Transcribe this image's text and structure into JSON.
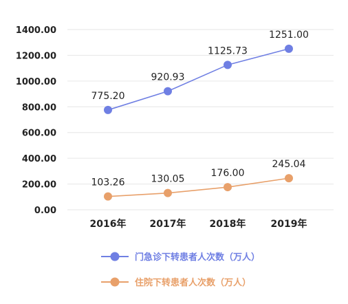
{
  "chart_data": {
    "type": "line",
    "categories": [
      "2016年",
      "2017年",
      "2018年",
      "2019年"
    ],
    "series": [
      {
        "name": "门急诊下转患者人次数（万人）",
        "values": [
          775.2,
          920.93,
          1125.73,
          1251.0
        ],
        "labels": [
          "775.20",
          "920.93",
          "1125.73",
          "1251.00"
        ],
        "color": "#6f7fe3"
      },
      {
        "name": "住院下转患者人次数（万人）",
        "values": [
          103.26,
          130.05,
          176.0,
          245.04
        ],
        "labels": [
          "103.26",
          "130.05",
          "176.00",
          "245.04"
        ],
        "color": "#e8a06a"
      }
    ],
    "yticks": [
      "0.00",
      "200.00",
      "400.00",
      "600.00",
      "800.00",
      "1000.00",
      "1200.00",
      "1400.00"
    ],
    "ylim": [
      0,
      1400
    ],
    "grid": true,
    "legend_position": "bottom"
  }
}
